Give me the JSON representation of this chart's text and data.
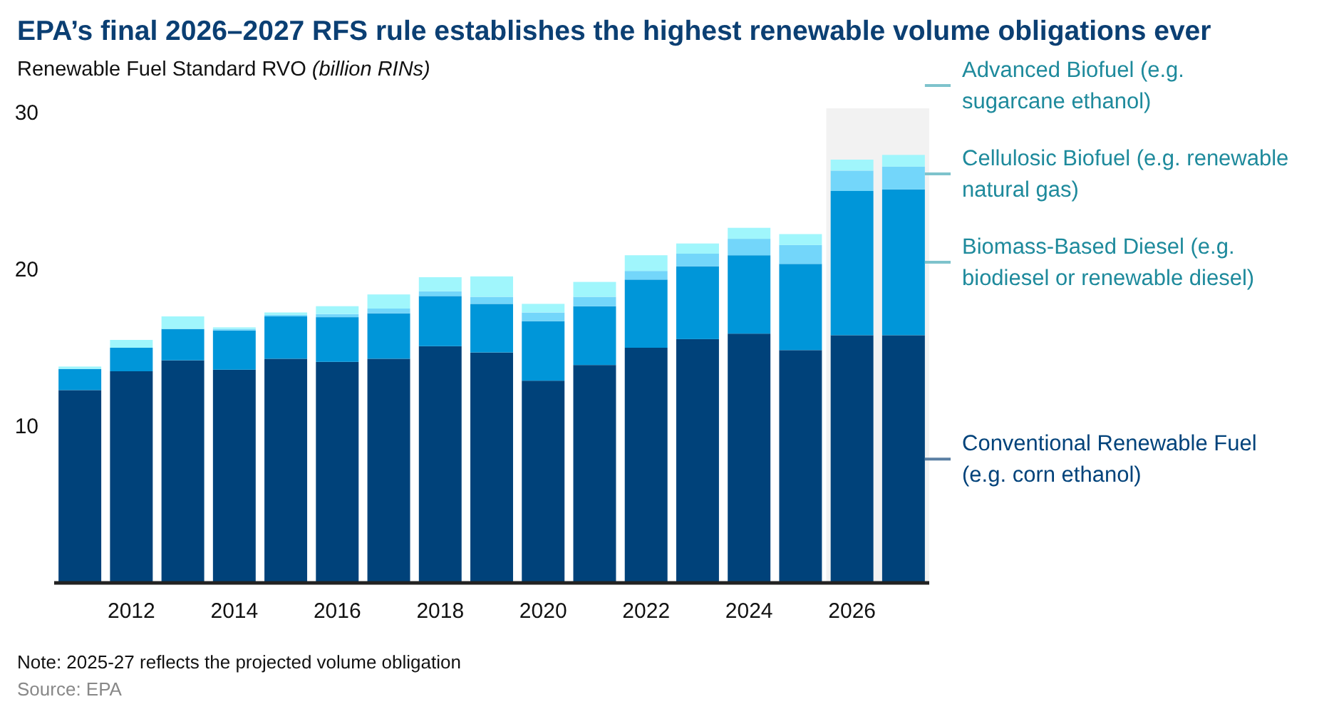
{
  "chart_data": {
    "type": "bar",
    "stacked": true,
    "title": "EPA’s final 2026–2027 RFS rule establishes the highest renewable volume obligations ever",
    "ylabel": "Renewable Fuel Standard RVO (billion RINs)",
    "x": [
      2011,
      2012,
      2013,
      2014,
      2015,
      2016,
      2017,
      2018,
      2019,
      2020,
      2021,
      2022,
      2023,
      2024,
      2025,
      2026,
      2027
    ],
    "xlim": [
      2010.5,
      2027.5
    ],
    "xticks": [
      2012,
      2014,
      2016,
      2018,
      2020,
      2022,
      2024,
      2026
    ],
    "ylim": [
      0,
      30
    ],
    "yticks": [
      10,
      20,
      30
    ],
    "grid": false,
    "legend": "right",
    "series": [
      {
        "name": "Conventional Renewable Fuel (e.g. corn ethanol)",
        "color": "#00427a",
        "values": [
          12.3,
          13.5,
          14.2,
          13.6,
          14.3,
          14.1,
          14.3,
          15.1,
          14.7,
          12.9,
          13.9,
          15.0,
          15.55,
          15.9,
          14.85,
          15.8,
          15.8
        ]
      },
      {
        "name": "Biomass-Based Diesel (e.g. biodiesel or renewable diesel)",
        "color": "#0096d9",
        "values": [
          1.35,
          1.5,
          2.0,
          2.5,
          2.7,
          2.85,
          2.9,
          3.2,
          3.1,
          3.8,
          3.75,
          4.35,
          4.65,
          5.0,
          5.5,
          9.2,
          9.3
        ]
      },
      {
        "name": "Cellulosic Biofuel (e.g. renewable natural gas)",
        "color": "#73d6fa",
        "values": [
          0,
          0,
          0,
          0.1,
          0.1,
          0.2,
          0.3,
          0.3,
          0.45,
          0.55,
          0.6,
          0.55,
          0.8,
          1.05,
          1.2,
          1.3,
          1.45
        ]
      },
      {
        "name": "Advanced Biofuel (e.g. sugarcane ethanol)",
        "color": "#a0f6fc",
        "values": [
          0.15,
          0.5,
          0.8,
          0.1,
          0.15,
          0.5,
          0.9,
          0.9,
          1.3,
          0.55,
          0.95,
          1.0,
          0.65,
          0.7,
          0.7,
          0.7,
          0.75
        ]
      }
    ],
    "bands": [
      {
        "axis": "x",
        "from": 2025.5,
        "to": 2027.5,
        "color": "#f2f2f2"
      }
    ],
    "annotations": [
      "Note: 2025-27 reflects the projected volume obligation",
      "Source: EPA"
    ]
  }
}
